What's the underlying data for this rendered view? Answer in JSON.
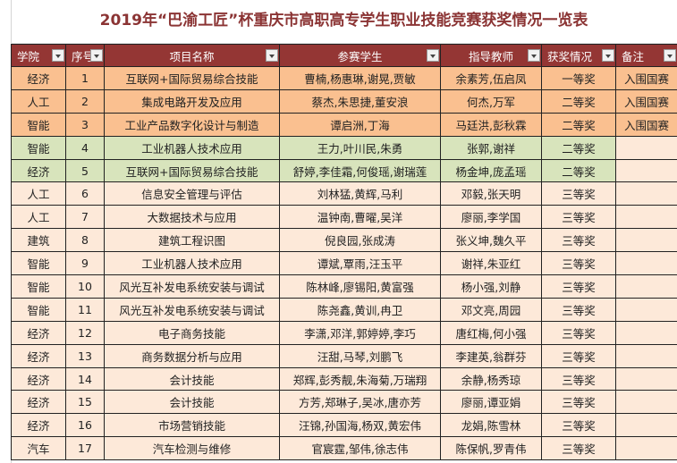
{
  "title": "2019年“巴渝工匠”杯重庆市高职高专学生职业技能竞赛获奖情况一览表",
  "headers": [
    "学院",
    "序号",
    "项目名称",
    "参赛学生",
    "指导教师",
    "获奖情况",
    "备注"
  ],
  "colors": {
    "header": "#943634",
    "first_prize_rows": "#fac090",
    "green_rows": "#d8e4bc",
    "third_prize_rows": "#fde9d9",
    "title": "#8b3434"
  },
  "rows": [
    {
      "college": "经济",
      "no": "1",
      "project": "互联网+国际贸易综合技能",
      "students": "曹楠,杨惠琳,谢晃,贾敏",
      "teachers": "余素芳,伍启凤",
      "award": "一等奖",
      "note": "入围国赛"
    },
    {
      "college": "人工",
      "no": "2",
      "project": "集成电路开发及应用",
      "students": "蔡杰,朱思捷,董安浪",
      "teachers": "何杰,万军",
      "award": "二等奖",
      "note": "入围国赛"
    },
    {
      "college": "智能",
      "no": "3",
      "project": "工业产品数字化设计与制造",
      "students": "谭启洲,丁海",
      "teachers": "马廷洪,彭秋霖",
      "award": "二等奖",
      "note": "入围国赛"
    },
    {
      "college": "智能",
      "no": "4",
      "project": "工业机器人技术应用",
      "students": "王力,叶川民,朱勇",
      "teachers": "张郭,谢祥",
      "award": "二等奖",
      "note": ""
    },
    {
      "college": "经济",
      "no": "5",
      "project": "互联网+国际贸易综合技能",
      "students": "舒婷,李佳霜,何俊瑶,谢瑞莲",
      "teachers": "杨金坤,庞孟瑶",
      "award": "二等奖",
      "note": ""
    },
    {
      "college": "人工",
      "no": "6",
      "project": "信息安全管理与评估",
      "students": "刘林猛,黄辉,马利",
      "teachers": "邓毅,张天明",
      "award": "三等奖",
      "note": ""
    },
    {
      "college": "人工",
      "no": "7",
      "project": "大数据技术与应用",
      "students": "温钟南,曹曜,吴洋",
      "teachers": "廖丽,李学国",
      "award": "三等奖",
      "note": ""
    },
    {
      "college": "建筑",
      "no": "8",
      "project": "建筑工程识图",
      "students": "倪良园,张成涛",
      "teachers": "张义坤,魏久平",
      "award": "三等奖",
      "note": ""
    },
    {
      "college": "智能",
      "no": "9",
      "project": "工业机器人技术应用",
      "students": "谭斌,覃雨,汪玉平",
      "teachers": "谢祥,朱亚红",
      "award": "三等奖",
      "note": ""
    },
    {
      "college": "智能",
      "no": "10",
      "project": "风光互补发电系统安装与调试",
      "students": "陈林峰,廖锡阳,黄富强",
      "teachers": "杨小强,刘静",
      "award": "三等奖",
      "note": ""
    },
    {
      "college": "智能",
      "no": "11",
      "project": "风光互补发电系统安装与调试",
      "students": "陈尧鑫,黄训,冉卫",
      "teachers": "邓文亮,周园",
      "award": "三等奖",
      "note": ""
    },
    {
      "college": "经济",
      "no": "12",
      "project": "电子商务技能",
      "students": "李潇,邓洋,郭婷婷,李巧",
      "teachers": "唐红梅,何小强",
      "award": "三等奖",
      "note": ""
    },
    {
      "college": "经济",
      "no": "13",
      "project": "商务数据分析与应用",
      "students": "汪甜,马琴,刘鹏飞",
      "teachers": "李建英,翁群芬",
      "award": "三等奖",
      "note": ""
    },
    {
      "college": "经济",
      "no": "14",
      "project": "会计技能",
      "students": "郑辉,彭秀靓,朱海菊,万瑞翔",
      "teachers": "余静,杨秀琼",
      "award": "三等奖",
      "note": ""
    },
    {
      "college": "经济",
      "no": "15",
      "project": "会计技能",
      "students": "方芳,郑琳子,吴冰,唐亦芳",
      "teachers": "廖丽,谭亚娟",
      "award": "三等奖",
      "note": ""
    },
    {
      "college": "经济",
      "no": "16",
      "project": "市场营销技能",
      "students": "汪锦,孙国海,杨双,黄宏伟",
      "teachers": "龙娟,陈雪林",
      "award": "三等奖",
      "note": ""
    },
    {
      "college": "汽车",
      "no": "17",
      "project": "汽车检测与维修",
      "students": "官宸霆,邹伟,徐志伟",
      "teachers": "陈保帆,罗青伟",
      "award": "三等奖",
      "note": ""
    }
  ]
}
